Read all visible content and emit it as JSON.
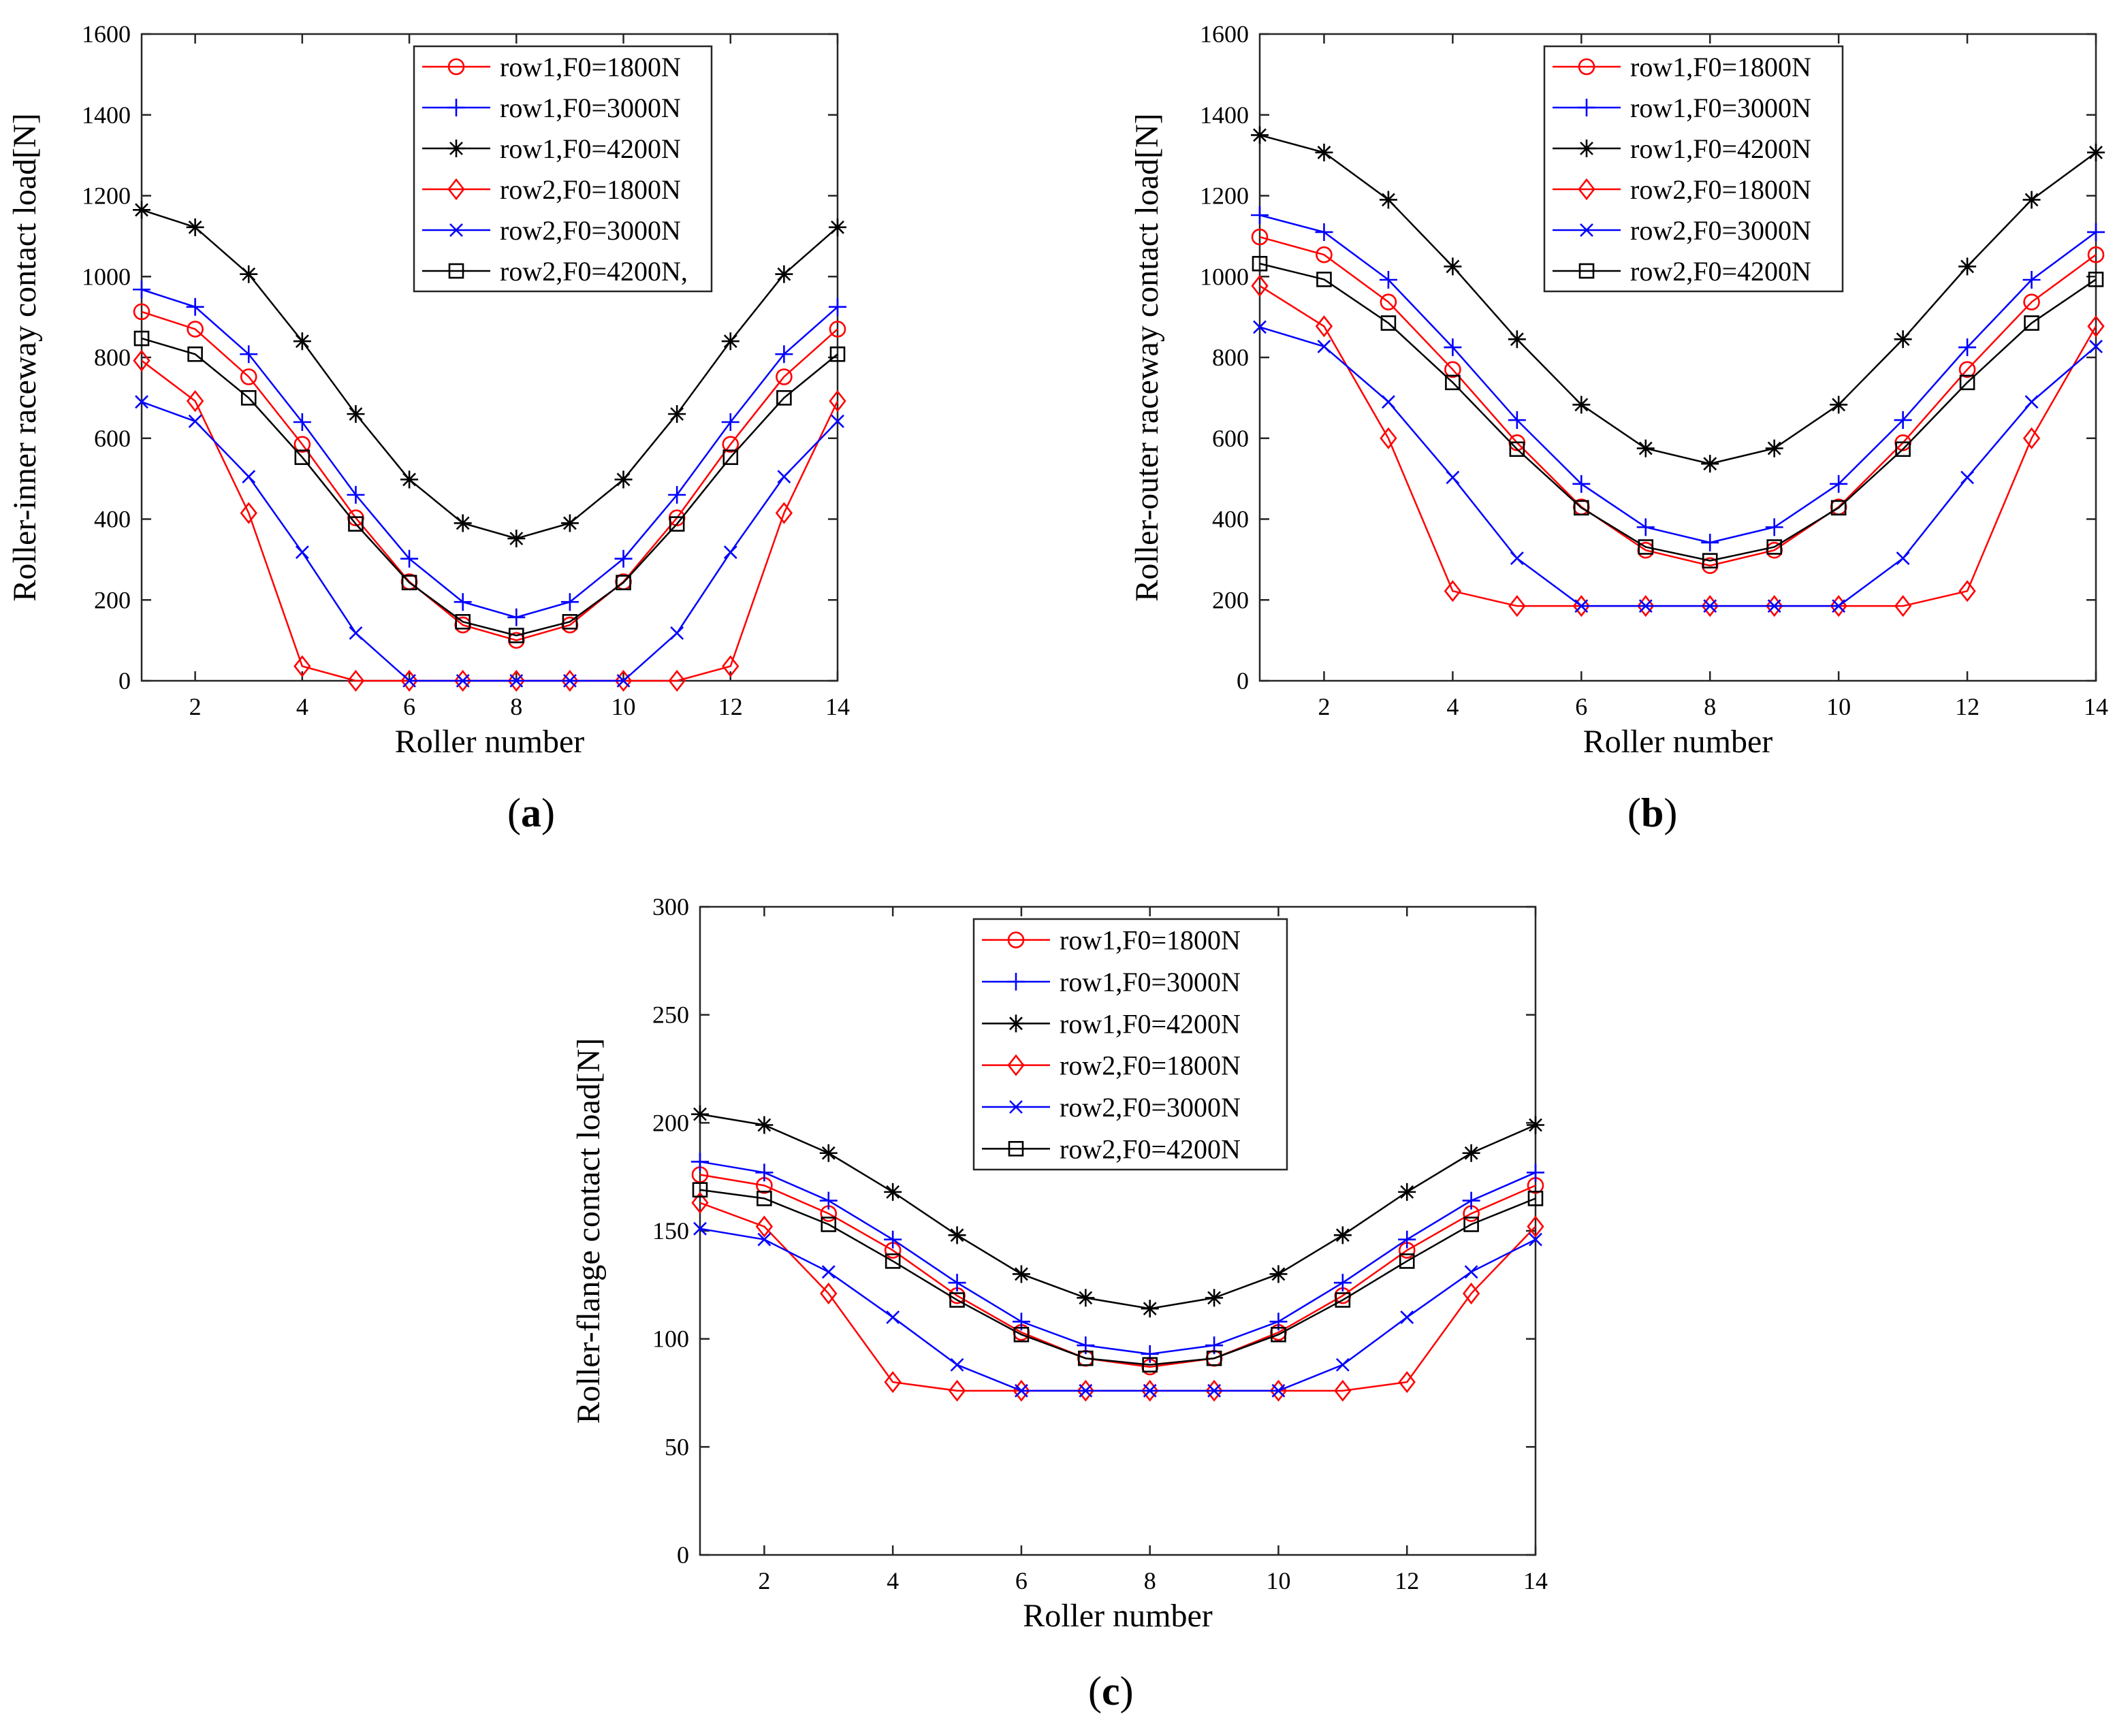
{
  "figure": {
    "sub_labels": [
      "a",
      "b",
      "c"
    ]
  },
  "chart_data": [
    {
      "id": "a",
      "type": "line",
      "xlabel": "Roller number",
      "ylabel": "Roller-inner raceway contact load[N]",
      "xlim": [
        1,
        14
      ],
      "ylim": [
        0,
        1600
      ],
      "xticks": [
        2,
        4,
        6,
        8,
        10,
        12,
        14
      ],
      "yticks": [
        0,
        200,
        400,
        600,
        800,
        1000,
        1200,
        1400,
        1600
      ],
      "x": [
        1,
        2,
        3,
        4,
        5,
        6,
        7,
        8,
        9,
        10,
        11,
        12,
        13,
        14
      ],
      "legend_position": "top-right",
      "series": [
        {
          "name": "row1,F0=1800N",
          "color": "#ff0000",
          "marker": "circle",
          "values": [
            913,
            870,
            752,
            585,
            403,
            245,
            138,
            100,
            138,
            245,
            403,
            585,
            752,
            870
          ]
        },
        {
          "name": "row1,F0=3000N",
          "color": "#0000ff",
          "marker": "plus",
          "values": [
            968,
            925,
            808,
            640,
            460,
            302,
            195,
            157,
            195,
            302,
            460,
            640,
            808,
            925
          ]
        },
        {
          "name": "row1,F0=4200N",
          "color": "#000000",
          "marker": "star",
          "values": [
            1165,
            1122,
            1006,
            840,
            660,
            498,
            390,
            352,
            390,
            498,
            660,
            840,
            1006,
            1122
          ]
        },
        {
          "name": "row2,F0=1800N",
          "color": "#ff0000",
          "marker": "diamond",
          "values": [
            792,
            692,
            415,
            36,
            0,
            0,
            0,
            0,
            0,
            0,
            0,
            36,
            415,
            692
          ]
        },
        {
          "name": "row2,F0=3000N",
          "color": "#0000ff",
          "marker": "x",
          "values": [
            690,
            642,
            505,
            318,
            118,
            0,
            0,
            0,
            0,
            0,
            118,
            318,
            505,
            642
          ]
        },
        {
          "name": "row2,F0=4200N,",
          "color": "#000000",
          "marker": "square",
          "values": [
            847,
            808,
            700,
            553,
            388,
            243,
            146,
            112,
            146,
            243,
            388,
            553,
            700,
            808
          ]
        }
      ]
    },
    {
      "id": "b",
      "type": "line",
      "xlabel": "Roller number",
      "ylabel": "Roller-outer raceway contact load[N]",
      "xlim": [
        1,
        14
      ],
      "ylim": [
        0,
        1600
      ],
      "xticks": [
        2,
        4,
        6,
        8,
        10,
        12,
        14
      ],
      "yticks": [
        0,
        200,
        400,
        600,
        800,
        1000,
        1200,
        1400,
        1600
      ],
      "x": [
        1,
        2,
        3,
        4,
        5,
        6,
        7,
        8,
        9,
        10,
        11,
        12,
        13,
        14
      ],
      "legend_position": "top-right",
      "series": [
        {
          "name": "row1,F0=1800N",
          "color": "#ff0000",
          "marker": "circle",
          "values": [
            1098,
            1054,
            937,
            770,
            589,
            430,
            323,
            285,
            323,
            430,
            589,
            770,
            937,
            1054
          ]
        },
        {
          "name": "row1,F0=3000N",
          "color": "#0000ff",
          "marker": "plus",
          "values": [
            1152,
            1110,
            992,
            825,
            645,
            487,
            380,
            342,
            380,
            487,
            645,
            825,
            992,
            1110
          ]
        },
        {
          "name": "row1,F0=4200N",
          "color": "#000000",
          "marker": "star",
          "values": [
            1350,
            1307,
            1190,
            1025,
            845,
            683,
            575,
            537,
            575,
            683,
            845,
            1025,
            1190,
            1307
          ]
        },
        {
          "name": "row2,F0=1800N",
          "color": "#ff0000",
          "marker": "diamond",
          "values": [
            977,
            877,
            600,
            222,
            185,
            185,
            185,
            185,
            185,
            185,
            185,
            222,
            600,
            877
          ]
        },
        {
          "name": "row2,F0=3000N",
          "color": "#0000ff",
          "marker": "x",
          "values": [
            875,
            827,
            690,
            503,
            303,
            185,
            185,
            185,
            185,
            185,
            303,
            503,
            690,
            827
          ]
        },
        {
          "name": "row2,F0=4200N",
          "color": "#000000",
          "marker": "square",
          "values": [
            1032,
            993,
            885,
            738,
            573,
            428,
            331,
            297,
            331,
            428,
            573,
            738,
            885,
            993
          ]
        }
      ]
    },
    {
      "id": "c",
      "type": "line",
      "xlabel": "Roller number",
      "ylabel": "Roller-flange contact load[N]",
      "xlim": [
        1,
        14
      ],
      "ylim": [
        0,
        300
      ],
      "xticks": [
        2,
        4,
        6,
        8,
        10,
        12,
        14
      ],
      "yticks": [
        0,
        50,
        100,
        150,
        200,
        250,
        300
      ],
      "x": [
        1,
        2,
        3,
        4,
        5,
        6,
        7,
        8,
        9,
        10,
        11,
        12,
        13,
        14
      ],
      "legend_position": "top-right",
      "series": [
        {
          "name": "row1,F0=1800N",
          "color": "#ff0000",
          "marker": "circle",
          "values": [
            176,
            171,
            158,
            141,
            120,
            103,
            91,
            87,
            91,
            103,
            120,
            141,
            158,
            171
          ]
        },
        {
          "name": "row1,F0=3000N",
          "color": "#0000ff",
          "marker": "plus",
          "values": [
            182,
            177,
            164,
            146,
            126,
            108,
            97,
            93,
            97,
            108,
            126,
            146,
            164,
            177
          ]
        },
        {
          "name": "row1,F0=4200N",
          "color": "#000000",
          "marker": "star",
          "values": [
            204,
            199,
            186,
            168,
            148,
            130,
            119,
            114,
            119,
            130,
            148,
            168,
            186,
            199
          ]
        },
        {
          "name": "row2,F0=1800N",
          "color": "#ff0000",
          "marker": "diamond",
          "values": [
            163,
            152,
            121,
            80,
            76,
            76,
            76,
            76,
            76,
            76,
            76,
            80,
            121,
            152
          ]
        },
        {
          "name": "row2,F0=3000N",
          "color": "#0000ff",
          "marker": "x",
          "values": [
            151,
            146,
            131,
            110,
            88,
            76,
            76,
            76,
            76,
            76,
            88,
            110,
            131,
            146
          ]
        },
        {
          "name": "row2,F0=4200N",
          "color": "#000000",
          "marker": "square",
          "values": [
            169,
            165,
            153,
            136,
            118,
            102,
            91,
            88,
            91,
            102,
            118,
            136,
            153,
            165
          ]
        }
      ]
    }
  ]
}
